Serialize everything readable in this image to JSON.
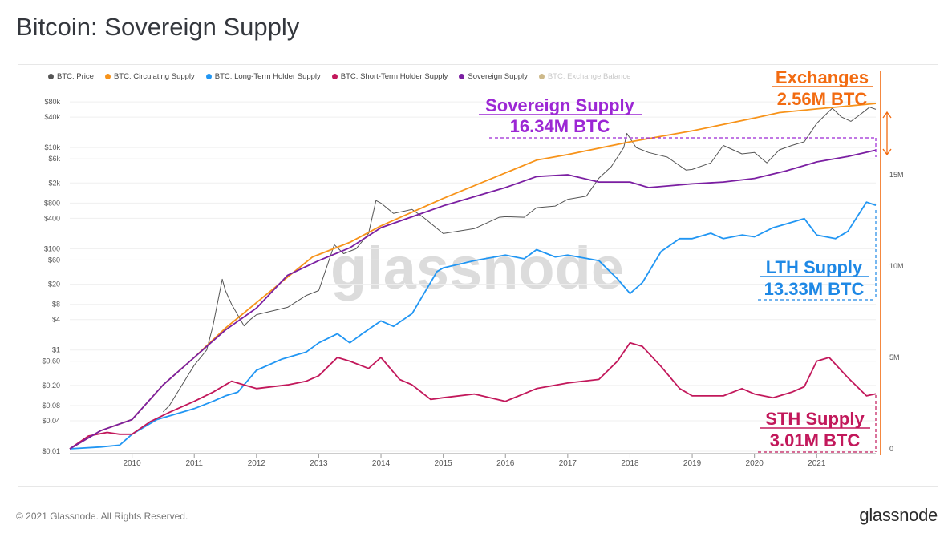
{
  "title": "Bitcoin: Sovereign Supply",
  "footer": {
    "copyright": "© 2021 Glassnode. All Rights Reserved.",
    "brand": "glassnode"
  },
  "watermark": "glassnode",
  "colors": {
    "price": "#555555",
    "circulating": "#f7931a",
    "lth": "#2196f3",
    "sth": "#c2185b",
    "sovereign": "#7b1fa2",
    "exchange": "#a07a1e",
    "exchanges_annotation": "#f26b11",
    "sovereign_annotation": "#9c27d4",
    "lth_annotation": "#1e88e5",
    "sth_annotation": "#c2185b"
  },
  "legend": [
    {
      "label": "BTC: Price",
      "color": "#555555",
      "faded": false
    },
    {
      "label": "BTC: Circulating Supply",
      "color": "#f7931a",
      "faded": false
    },
    {
      "label": "BTC: Long-Term Holder Supply",
      "color": "#2196f3",
      "faded": false
    },
    {
      "label": "BTC: Short-Term Holder Supply",
      "color": "#c2185b",
      "faded": false
    },
    {
      "label": "Sovereign Supply",
      "color": "#7b1fa2",
      "faded": false
    },
    {
      "label": "BTC: Exchange Balance",
      "color": "#a07a1e",
      "faded": true
    }
  ],
  "annotations": {
    "exchanges": {
      "title": "Exchanges",
      "value": "2.56M BTC"
    },
    "sovereign": {
      "title": "Sovereign Supply",
      "value": "16.34M BTC"
    },
    "lth": {
      "title": "LTH Supply",
      "value": "13.33M BTC"
    },
    "sth": {
      "title": "STH Supply",
      "value": "3.01M BTC"
    }
  },
  "chart_data": {
    "type": "line",
    "x_ticks": [
      "2010",
      "2011",
      "2012",
      "2013",
      "2014",
      "2015",
      "2016",
      "2017",
      "2018",
      "2019",
      "2020",
      "2021"
    ],
    "x_range": [
      2009.0,
      2021.95
    ],
    "left_axis": {
      "scale": "log",
      "unit": "USD",
      "range": [
        0.01,
        100000
      ],
      "ticks": [
        {
          "v": 80000,
          "l": "$80k"
        },
        {
          "v": 40000,
          "l": "$40k"
        },
        {
          "v": 10000,
          "l": "$10k"
        },
        {
          "v": 6000,
          "l": "$6k"
        },
        {
          "v": 2000,
          "l": "$2k"
        },
        {
          "v": 800,
          "l": "$800"
        },
        {
          "v": 400,
          "l": "$400"
        },
        {
          "v": 100,
          "l": "$100"
        },
        {
          "v": 60,
          "l": "$60"
        },
        {
          "v": 20,
          "l": "$20"
        },
        {
          "v": 8,
          "l": "$8"
        },
        {
          "v": 4,
          "l": "$4"
        },
        {
          "v": 1,
          "l": "$1"
        },
        {
          "v": 0.6,
          "l": "$0.60"
        },
        {
          "v": 0.2,
          "l": "$0.20"
        },
        {
          "v": 0.08,
          "l": "$0.08"
        },
        {
          "v": 0.04,
          "l": "$0.04"
        },
        {
          "v": 0.01,
          "l": "$0.01"
        }
      ]
    },
    "right_axis": {
      "scale": "linear",
      "unit": "BTC",
      "range": [
        0,
        20000000
      ],
      "ticks": [
        {
          "v": 0,
          "l": "0"
        },
        {
          "v": 5000000,
          "l": "5M"
        },
        {
          "v": 10000000,
          "l": "10M"
        },
        {
          "v": 15000000,
          "l": "15M"
        }
      ]
    },
    "series": [
      {
        "name": "BTC: Circulating Supply",
        "axis": "right",
        "points": [
          [
            2009.0,
            0
          ],
          [
            2009.5,
            1000000
          ],
          [
            2010.0,
            1600000
          ],
          [
            2010.5,
            3500000
          ],
          [
            2011.0,
            5000000
          ],
          [
            2011.5,
            6600000
          ],
          [
            2012.0,
            8000000
          ],
          [
            2012.5,
            9400000
          ],
          [
            2012.9,
            10500000
          ],
          [
            2013.5,
            11300000
          ],
          [
            2014.0,
            12200000
          ],
          [
            2015.0,
            13700000
          ],
          [
            2016.0,
            15100000
          ],
          [
            2016.5,
            15800000
          ],
          [
            2017.0,
            16100000
          ],
          [
            2018.0,
            16800000
          ],
          [
            2019.0,
            17400000
          ],
          [
            2020.0,
            18100000
          ],
          [
            2020.4,
            18400000
          ],
          [
            2021.0,
            18600000
          ],
          [
            2021.95,
            18900000
          ]
        ]
      },
      {
        "name": "Sovereign Supply",
        "axis": "right",
        "points": [
          [
            2009.0,
            0
          ],
          [
            2009.5,
            1000000
          ],
          [
            2010.0,
            1600000
          ],
          [
            2010.5,
            3500000
          ],
          [
            2011.0,
            5000000
          ],
          [
            2011.5,
            6500000
          ],
          [
            2012.0,
            7700000
          ],
          [
            2012.5,
            9500000
          ],
          [
            2013.0,
            10300000
          ],
          [
            2013.5,
            11000000
          ],
          [
            2014.0,
            12100000
          ],
          [
            2015.0,
            13300000
          ],
          [
            2016.0,
            14300000
          ],
          [
            2016.5,
            14900000
          ],
          [
            2017.0,
            15000000
          ],
          [
            2017.5,
            14600000
          ],
          [
            2018.0,
            14600000
          ],
          [
            2018.3,
            14300000
          ],
          [
            2019.0,
            14500000
          ],
          [
            2019.5,
            14600000
          ],
          [
            2020.0,
            14800000
          ],
          [
            2020.5,
            15200000
          ],
          [
            2021.0,
            15700000
          ],
          [
            2021.5,
            16000000
          ],
          [
            2021.95,
            16340000
          ]
        ]
      },
      {
        "name": "BTC: Long-Term Holder Supply",
        "axis": "right",
        "points": [
          [
            2009.0,
            0
          ],
          [
            2009.5,
            100000
          ],
          [
            2009.8,
            200000
          ],
          [
            2010.0,
            800000
          ],
          [
            2010.4,
            1600000
          ],
          [
            2010.8,
            2000000
          ],
          [
            2011.0,
            2200000
          ],
          [
            2011.3,
            2600000
          ],
          [
            2011.5,
            2900000
          ],
          [
            2011.7,
            3100000
          ],
          [
            2012.0,
            4300000
          ],
          [
            2012.4,
            4900000
          ],
          [
            2012.8,
            5300000
          ],
          [
            2013.0,
            5800000
          ],
          [
            2013.3,
            6300000
          ],
          [
            2013.5,
            5800000
          ],
          [
            2013.7,
            6300000
          ],
          [
            2014.0,
            7000000
          ],
          [
            2014.2,
            6700000
          ],
          [
            2014.5,
            7400000
          ],
          [
            2014.9,
            9700000
          ],
          [
            2015.0,
            9900000
          ],
          [
            2015.5,
            10300000
          ],
          [
            2016.0,
            10600000
          ],
          [
            2016.3,
            10400000
          ],
          [
            2016.5,
            10900000
          ],
          [
            2016.8,
            10500000
          ],
          [
            2017.0,
            10600000
          ],
          [
            2017.5,
            10300000
          ],
          [
            2017.8,
            9300000
          ],
          [
            2018.0,
            8500000
          ],
          [
            2018.2,
            9100000
          ],
          [
            2018.5,
            10800000
          ],
          [
            2018.8,
            11500000
          ],
          [
            2019.0,
            11500000
          ],
          [
            2019.3,
            11800000
          ],
          [
            2019.5,
            11500000
          ],
          [
            2019.8,
            11700000
          ],
          [
            2020.0,
            11600000
          ],
          [
            2020.3,
            12100000
          ],
          [
            2020.5,
            12300000
          ],
          [
            2020.8,
            12600000
          ],
          [
            2021.0,
            11700000
          ],
          [
            2021.3,
            11500000
          ],
          [
            2021.5,
            11900000
          ],
          [
            2021.8,
            13500000
          ],
          [
            2021.95,
            13330000
          ]
        ]
      },
      {
        "name": "BTC: Short-Term Holder Supply",
        "axis": "right",
        "points": [
          [
            2009.0,
            0
          ],
          [
            2009.3,
            700000
          ],
          [
            2009.6,
            900000
          ],
          [
            2009.8,
            800000
          ],
          [
            2010.0,
            800000
          ],
          [
            2010.3,
            1500000
          ],
          [
            2010.6,
            2000000
          ],
          [
            2011.0,
            2600000
          ],
          [
            2011.3,
            3100000
          ],
          [
            2011.5,
            3500000
          ],
          [
            2011.6,
            3700000
          ],
          [
            2011.8,
            3500000
          ],
          [
            2012.0,
            3300000
          ],
          [
            2012.5,
            3500000
          ],
          [
            2012.8,
            3700000
          ],
          [
            2013.0,
            4000000
          ],
          [
            2013.3,
            5000000
          ],
          [
            2013.5,
            4800000
          ],
          [
            2013.8,
            4400000
          ],
          [
            2014.0,
            5000000
          ],
          [
            2014.3,
            3800000
          ],
          [
            2014.5,
            3500000
          ],
          [
            2014.8,
            2700000
          ],
          [
            2015.0,
            2800000
          ],
          [
            2015.5,
            3000000
          ],
          [
            2016.0,
            2600000
          ],
          [
            2016.5,
            3300000
          ],
          [
            2017.0,
            3600000
          ],
          [
            2017.5,
            3800000
          ],
          [
            2017.8,
            4800000
          ],
          [
            2018.0,
            5800000
          ],
          [
            2018.2,
            5600000
          ],
          [
            2018.5,
            4500000
          ],
          [
            2018.8,
            3300000
          ],
          [
            2019.0,
            2900000
          ],
          [
            2019.5,
            2900000
          ],
          [
            2019.8,
            3300000
          ],
          [
            2020.0,
            3000000
          ],
          [
            2020.3,
            2800000
          ],
          [
            2020.6,
            3100000
          ],
          [
            2020.8,
            3400000
          ],
          [
            2021.0,
            4800000
          ],
          [
            2021.2,
            5000000
          ],
          [
            2021.5,
            3900000
          ],
          [
            2021.8,
            2900000
          ],
          [
            2021.95,
            3010000
          ]
        ]
      },
      {
        "name": "BTC: Price",
        "axis": "left",
        "points": [
          [
            2010.5,
            0.06
          ],
          [
            2010.6,
            0.08
          ],
          [
            2010.8,
            0.2
          ],
          [
            2011.0,
            0.5
          ],
          [
            2011.2,
            1
          ],
          [
            2011.3,
            3
          ],
          [
            2011.45,
            25
          ],
          [
            2011.5,
            15
          ],
          [
            2011.6,
            8
          ],
          [
            2011.8,
            3
          ],
          [
            2011.9,
            4
          ],
          [
            2012.0,
            5
          ],
          [
            2012.5,
            7
          ],
          [
            2012.8,
            12
          ],
          [
            2013.0,
            15
          ],
          [
            2013.25,
            120
          ],
          [
            2013.4,
            80
          ],
          [
            2013.6,
            100
          ],
          [
            2013.8,
            200
          ],
          [
            2013.92,
            900
          ],
          [
            2014.0,
            800
          ],
          [
            2014.2,
            500
          ],
          [
            2014.5,
            600
          ],
          [
            2014.7,
            400
          ],
          [
            2015.0,
            200
          ],
          [
            2015.5,
            250
          ],
          [
            2015.9,
            420
          ],
          [
            2016.0,
            430
          ],
          [
            2016.3,
            420
          ],
          [
            2016.5,
            650
          ],
          [
            2016.8,
            700
          ],
          [
            2017.0,
            950
          ],
          [
            2017.3,
            1100
          ],
          [
            2017.5,
            2500
          ],
          [
            2017.7,
            4200
          ],
          [
            2017.9,
            10000
          ],
          [
            2017.95,
            19000
          ],
          [
            2018.1,
            10000
          ],
          [
            2018.3,
            8000
          ],
          [
            2018.6,
            6500
          ],
          [
            2018.9,
            3600
          ],
          [
            2019.0,
            3700
          ],
          [
            2019.3,
            5000
          ],
          [
            2019.5,
            11000
          ],
          [
            2019.8,
            7500
          ],
          [
            2020.0,
            8000
          ],
          [
            2020.2,
            5000
          ],
          [
            2020.4,
            9000
          ],
          [
            2020.6,
            11000
          ],
          [
            2020.8,
            13000
          ],
          [
            2021.0,
            30000
          ],
          [
            2021.25,
            60000
          ],
          [
            2021.4,
            40000
          ],
          [
            2021.55,
            33000
          ],
          [
            2021.7,
            45000
          ],
          [
            2021.85,
            63000
          ],
          [
            2021.95,
            57000
          ]
        ]
      }
    ]
  }
}
